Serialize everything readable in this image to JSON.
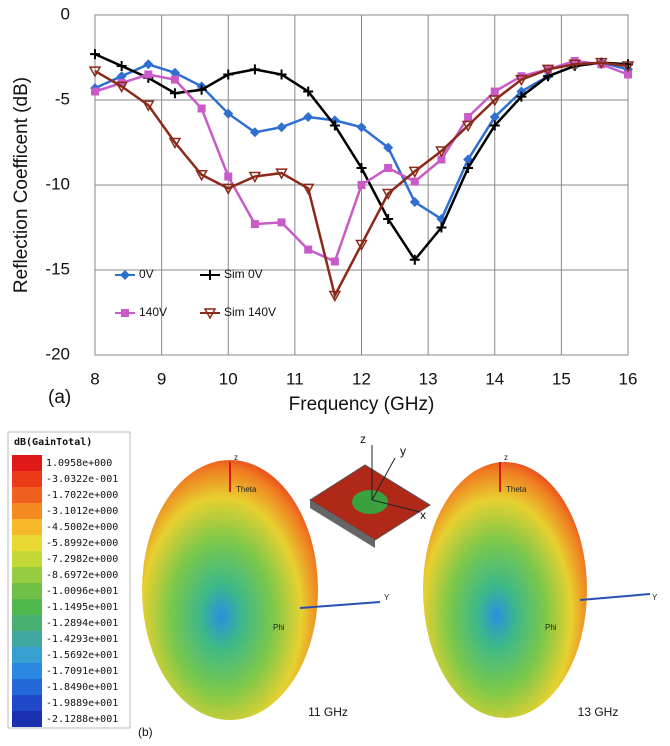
{
  "chart_data": {
    "type": "line",
    "x_label": "Frequency (GHz)",
    "y_label": "Reflection Coefficent (dB)",
    "panel_label": "(a)",
    "x": [
      8,
      8.4,
      8.8,
      9.2,
      9.6,
      10,
      10.4,
      10.8,
      11.2,
      11.6,
      12,
      12.4,
      12.8,
      13.2,
      13.6,
      14,
      14.4,
      14.8,
      15.2,
      15.6,
      16
    ],
    "series": [
      {
        "name": "0V",
        "color": "#2e6fd0",
        "marker": "diamond",
        "values": [
          -4.3,
          -3.6,
          -2.9,
          -3.4,
          -4.2,
          -5.8,
          -6.9,
          -6.6,
          -6.0,
          -6.2,
          -6.6,
          -7.8,
          -11,
          -12,
          -8.5,
          -6,
          -4.5,
          -3.6,
          -3.0,
          -2.8,
          -3.2
        ]
      },
      {
        "name": "Sim 0V",
        "color": "#000000",
        "marker": "plus",
        "values": [
          -2.3,
          -3.0,
          -3.7,
          -4.6,
          -4.4,
          -3.5,
          -3.2,
          -3.5,
          -4.5,
          -6.5,
          -9.0,
          -12,
          -14.4,
          -12.5,
          -9,
          -6.5,
          -4.8,
          -3.6,
          -3.0,
          -2.8,
          -2.9
        ]
      },
      {
        "name": "140V",
        "color": "#c85bc8",
        "marker": "square",
        "values": [
          -4.5,
          -4.0,
          -3.5,
          -3.8,
          -5.5,
          -9.5,
          -12.3,
          -12.2,
          -13.8,
          -14.5,
          -10,
          -9,
          -9.8,
          -8.5,
          -6,
          -4.5,
          -3.6,
          -3.2,
          -2.7,
          -2.9,
          -3.5
        ]
      },
      {
        "name": "Sim 140V",
        "color": "#8b2a1a",
        "marker": "triangle",
        "values": [
          -3.3,
          -4.2,
          -5.3,
          -7.5,
          -9.4,
          -10.2,
          -9.5,
          -9.3,
          -10.2,
          -16.5,
          -13.5,
          -10.5,
          -9.2,
          -8,
          -6.5,
          -5,
          -3.8,
          -3.2,
          -2.9,
          -2.8,
          -3.0
        ]
      }
    ],
    "xlim": [
      8,
      16
    ],
    "ylim": [
      -20,
      0
    ],
    "xticks": [
      8,
      9,
      10,
      11,
      12,
      13,
      14,
      15,
      16
    ],
    "yticks": [
      0,
      -5,
      -10,
      -15,
      -20
    ],
    "grid": true
  },
  "panel_b": {
    "label": "(b)",
    "colorbar_title": "dB(GainTotal)",
    "colorbar_labels": [
      "1.0958e+000",
      "-3.0322e-001",
      "-1.7022e+000",
      "-3.1012e+000",
      "-4.5002e+000",
      "-5.8992e+000",
      "-7.2982e+000",
      "-8.6972e+000",
      "-1.0096e+001",
      "-1.1495e+001",
      "-1.2894e+001",
      "-1.4293e+001",
      "-1.5692e+001",
      "-1.7091e+001",
      "-1.8490e+001",
      "-1.9889e+001",
      "-2.1288e+001"
    ],
    "pattern_left": {
      "caption": "11 GHz",
      "z": "z",
      "theta": "Theta",
      "phi": "Phi",
      "y": "Y"
    },
    "pattern_right": {
      "caption": "13 GHz",
      "z": "z",
      "theta": "Theta",
      "phi": "Phi",
      "y": "Y"
    },
    "inset_axes": {
      "z": "z",
      "y": "y",
      "x": "x"
    }
  }
}
